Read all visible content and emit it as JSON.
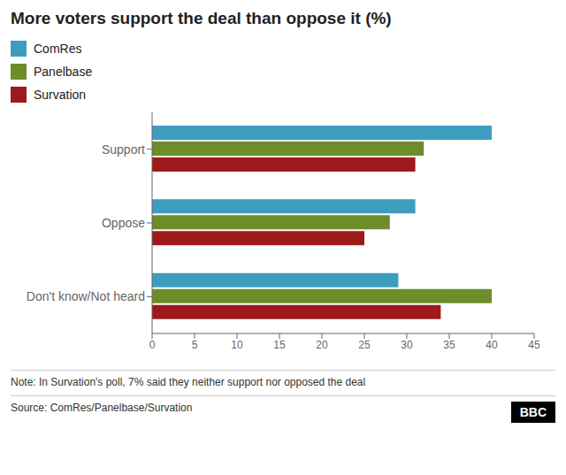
{
  "chart_data": {
    "type": "bar",
    "orientation": "horizontal",
    "title": "More voters support the deal than oppose it (%)",
    "categories": [
      "Support",
      "Oppose",
      "Don't know/Not heard"
    ],
    "series": [
      {
        "name": "ComRes",
        "color": "#3d9dbf",
        "values": [
          40,
          31,
          29
        ]
      },
      {
        "name": "Panelbase",
        "color": "#6d8c2a",
        "values": [
          32,
          28,
          40
        ]
      },
      {
        "name": "Survation",
        "color": "#9e1a1a",
        "values": [
          31,
          25,
          34
        ]
      }
    ],
    "xlim": [
      0,
      45
    ],
    "xticks": [
      0,
      5,
      10,
      15,
      20,
      25,
      30,
      35,
      40,
      45
    ],
    "grid": false,
    "legend": "top",
    "annotations": [
      "Note: In Survation's poll, 7% said they neither support nor opposed the deal",
      "Source: ComRes/Panelbase/Survation",
      "BBC"
    ]
  }
}
